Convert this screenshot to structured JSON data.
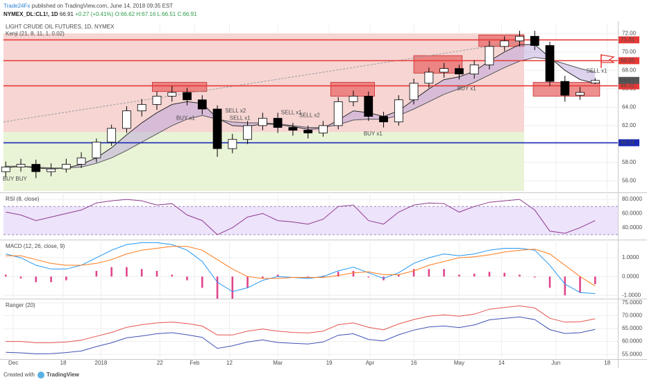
{
  "header": {
    "author": "Trade24Fx",
    "published": "published on TradingView.com, June 14, 2018 09:35 EST",
    "symbol": "NYMEX_DL:CL1!, 1D",
    "last": "66.91",
    "change": "+0.27 (+0.41%)",
    "open": "O:66.62",
    "high": "H:67.16",
    "low": "L:66.51",
    "close": "C:66.91"
  },
  "footer": {
    "created": "Created with",
    "brand": "TradingView"
  },
  "chart_data": [
    {
      "type": "candlestick",
      "title": "LIGHT CRUDE OIL FUTURES, 1D, NYMEX",
      "subtitle": "Kenji (21, 8, 11, 1, 0.02)",
      "xlim": [
        -0.15,
        40.5
      ],
      "xticks": [
        {
          "value": 0.5,
          "label": "Dec"
        },
        {
          "value": 3.8,
          "label": "18"
        },
        {
          "value": 6.3,
          "label": "2018"
        },
        {
          "value": 10.2,
          "label": "22"
        },
        {
          "value": 12.5,
          "label": "Feb"
        },
        {
          "value": 14.8,
          "label": "12"
        },
        {
          "value": 18,
          "label": "Mar"
        },
        {
          "value": 21.4,
          "label": "19"
        },
        {
          "value": 24.1,
          "label": "Apr"
        },
        {
          "value": 27,
          "label": "16"
        },
        {
          "value": 30,
          "label": "May"
        },
        {
          "value": 32.8,
          "label": "14"
        },
        {
          "value": 36.4,
          "label": "Jun"
        },
        {
          "value": 39.8,
          "label": "18"
        }
      ],
      "ylim": [
        54.9,
        73
      ],
      "yticks": [
        {
          "value": 56,
          "label": "56.00"
        },
        {
          "value": 58,
          "label": "58.00"
        },
        {
          "value": 60,
          "label": "60.00"
        },
        {
          "value": 62,
          "label": "62.00"
        },
        {
          "value": 64,
          "label": "64.00"
        },
        {
          "value": 66,
          "label": "66.00"
        },
        {
          "value": 68,
          "label": "68.00"
        },
        {
          "value": 70,
          "label": "70.00"
        },
        {
          "value": 72,
          "label": "72.00"
        }
      ],
      "candles": {
        "open": [
          57.0,
          57.5,
          57.8,
          57.0,
          57.3,
          57.8,
          58.5,
          60.2,
          61.7,
          63.6,
          64.3,
          65.2,
          65.6,
          64.8,
          63.8,
          59.5,
          60.5,
          62.0,
          62.8,
          61.8,
          61.5,
          61.2,
          62.0,
          64.6,
          65.2,
          63.0,
          62.4,
          64.8,
          66.6,
          67.8,
          68.2,
          67.6,
          68.6,
          70.6,
          71.2,
          71.7,
          70.7,
          66.8,
          65.3,
          66.62
        ],
        "high": [
          58.1,
          58.4,
          58.3,
          57.9,
          58.4,
          59.1,
          60.6,
          62.1,
          64.1,
          64.9,
          65.7,
          66.3,
          66.1,
          65.3,
          64.2,
          61.1,
          62.5,
          63.4,
          63.4,
          62.3,
          62.0,
          62.5,
          65.1,
          65.8,
          65.7,
          63.5,
          65.3,
          67.1,
          68.3,
          68.8,
          68.6,
          69.1,
          71.2,
          71.7,
          72.3,
          72.3,
          71.1,
          67.4,
          66.2,
          67.16
        ],
        "low": [
          56.4,
          57.0,
          56.3,
          56.5,
          56.9,
          57.4,
          58.0,
          59.8,
          61.2,
          63.0,
          63.7,
          64.6,
          64.2,
          63.2,
          58.6,
          59.0,
          60.0,
          61.5,
          61.2,
          60.9,
          60.6,
          60.8,
          61.6,
          64.1,
          62.5,
          61.8,
          62.0,
          64.3,
          66.1,
          67.2,
          67.0,
          67.1,
          68.1,
          70.1,
          70.6,
          70.2,
          66.3,
          64.6,
          64.8,
          66.51
        ],
        "close": [
          57.5,
          57.8,
          57.0,
          57.3,
          57.8,
          58.5,
          60.2,
          61.7,
          63.6,
          64.3,
          65.2,
          65.6,
          64.8,
          63.8,
          59.5,
          60.5,
          62.0,
          62.8,
          61.8,
          61.5,
          61.2,
          62.0,
          64.6,
          65.2,
          63.0,
          62.4,
          64.8,
          66.6,
          67.8,
          68.2,
          67.6,
          68.6,
          70.6,
          71.2,
          71.7,
          70.7,
          66.8,
          65.3,
          65.6,
          66.91
        ],
        "up_color": "#ffffff",
        "down_color": "#000000"
      },
      "kenji": [
        {
          "color": "#2b2b2b",
          "values": [
            57.4,
            57.6,
            57.4,
            57.3,
            57.4,
            57.8,
            58.5,
            59.6,
            61.0,
            62.3,
            63.4,
            64.3,
            64.6,
            64.4,
            62.8,
            62.0,
            61.9,
            62.2,
            62.1,
            61.9,
            61.6,
            61.7,
            62.6,
            63.6,
            63.4,
            63.0,
            63.6,
            64.8,
            66.0,
            67.0,
            67.3,
            67.9,
            69.0,
            70.0,
            70.8,
            70.8,
            69.4,
            68.0,
            67.0,
            66.6
          ]
        },
        {
          "color": "#555555",
          "values": [
            57.6,
            57.6,
            57.5,
            57.4,
            57.4,
            57.5,
            57.9,
            58.5,
            59.3,
            60.2,
            61.1,
            62.0,
            62.7,
            63.1,
            62.7,
            62.4,
            62.3,
            62.3,
            62.2,
            62.0,
            61.8,
            61.8,
            62.1,
            62.6,
            62.7,
            62.7,
            63.1,
            63.8,
            64.6,
            65.4,
            66.0,
            66.7,
            67.5,
            68.3,
            69.0,
            69.4,
            69.2,
            68.7,
            68.2,
            67.8
          ]
        }
      ],
      "kenji_fill": "#b39ddb",
      "shading": [
        {
          "x": [
            -0.15,
            34.3
          ],
          "y": [
            61.3,
            72
          ],
          "color": "#f6d5d3"
        },
        {
          "x": [
            -0.15,
            34.3
          ],
          "y": [
            54.9,
            61.3
          ],
          "color": "#e9f3d6"
        }
      ],
      "zones": [
        {
          "x": [
            9.7,
            13.3
          ],
          "y": [
            65.7,
            66.7
          ],
          "color": "#e86a6a"
        },
        {
          "x": [
            21.5,
            24.4
          ],
          "y": [
            65.2,
            66.7
          ],
          "color": "#e86a6a"
        },
        {
          "x": [
            27,
            30.2
          ],
          "y": [
            67.7,
            69.6
          ],
          "color": "#e86a6a"
        },
        {
          "x": [
            31.3,
            34.3
          ],
          "y": [
            70.6,
            71.85
          ],
          "color": "#e86a6a"
        },
        {
          "x": [
            34.9,
            39.3
          ],
          "y": [
            65.2,
            66.7
          ],
          "color": "#e86a6a"
        }
      ],
      "trendline": {
        "x": [
          -0.15,
          34.3
        ],
        "y": [
          62.4,
          71.2
        ],
        "color": "#9e9e9e"
      },
      "levels": [
        {
          "value": 71.31,
          "color": "#e53935"
        },
        {
          "value": 69.05,
          "color": "#e53935"
        },
        {
          "value": 66.32,
          "color": "#e53935"
        },
        {
          "value": 60.14,
          "color": "#1a2ab5"
        }
      ],
      "last_price": 66.91,
      "last_color": "#555555",
      "annotations": [
        {
          "text": "BUY BUY",
          "x": 0.6,
          "y": 56.2,
          "color": "#6a5acd"
        },
        {
          "text": "BUY x1",
          "x": 11.9,
          "y": 62.8,
          "color": "#6a5acd"
        },
        {
          "text": "SELL x2",
          "x": 15.2,
          "y": 63.6,
          "color": "#e53935"
        },
        {
          "text": "SELL x1",
          "x": 15.5,
          "y": 62.8,
          "color": "#e53935"
        },
        {
          "text": "SELL x1",
          "x": 18.9,
          "y": 63.4,
          "color": "#e53935"
        },
        {
          "text": "SELL x2",
          "x": 20.1,
          "y": 63.1,
          "color": "#e53935"
        },
        {
          "text": "BUY x1",
          "x": 24.3,
          "y": 61.1,
          "color": "#6a5acd"
        },
        {
          "text": "BUY x1",
          "x": 30.5,
          "y": 66.0,
          "color": "#6a5acd"
        },
        {
          "text": "SELL x1",
          "x": 39.1,
          "y": 67.9,
          "color": "#e53935"
        }
      ]
    },
    {
      "type": "line",
      "title": "RSI (8, close)",
      "ylim": [
        25,
        87
      ],
      "yticks": [
        {
          "value": 40,
          "label": "40.0000"
        },
        {
          "value": 60,
          "label": "60.0000"
        },
        {
          "value": 80,
          "label": "80.0000"
        }
      ],
      "band": [
        30,
        70
      ],
      "band_color": "#ede3fb",
      "series": [
        {
          "style": "line",
          "color": "#8e3a8e",
          "values": [
            62,
            58,
            50,
            55,
            60,
            65,
            75,
            78,
            80,
            78,
            72,
            74,
            58,
            50,
            30,
            40,
            55,
            60,
            50,
            48,
            45,
            52,
            70,
            72,
            50,
            45,
            62,
            72,
            75,
            74,
            62,
            70,
            76,
            78,
            80,
            65,
            35,
            32,
            40,
            50
          ]
        }
      ]
    },
    {
      "type": "line",
      "title": "MACD (12, 26, close, 9)",
      "ylim": [
        -1.1,
        1.85
      ],
      "yticks": [
        {
          "value": -1,
          "label": "-1.0000"
        },
        {
          "value": 0,
          "label": "0.0000"
        },
        {
          "value": 1,
          "label": "1.0000"
        }
      ],
      "series": [
        {
          "style": "histogram",
          "color": "#e0468a",
          "values": [
            0.1,
            -0.1,
            -0.3,
            -0.3,
            -0.2,
            0.0,
            0.3,
            0.5,
            0.5,
            0.4,
            0.3,
            0.1,
            -0.2,
            -0.6,
            -1.2,
            -1.2,
            -0.6,
            -0.1,
            0.1,
            0.0,
            -0.05,
            0.05,
            0.25,
            0.3,
            -0.05,
            -0.2,
            0.1,
            0.4,
            0.4,
            0.4,
            0.1,
            0.15,
            0.25,
            0.2,
            0.1,
            -0.05,
            -0.6,
            -1.0,
            -0.85,
            -0.4
          ]
        },
        {
          "style": "line",
          "color": "#2196f3",
          "values": [
            1.2,
            1.0,
            0.6,
            0.4,
            0.4,
            0.6,
            1.0,
            1.4,
            1.7,
            1.8,
            1.8,
            1.7,
            1.4,
            0.8,
            -0.3,
            -0.8,
            -0.6,
            -0.2,
            0.0,
            -0.05,
            -0.1,
            0.0,
            0.3,
            0.5,
            0.2,
            -0.1,
            0.2,
            0.7,
            1.0,
            1.2,
            1.1,
            1.2,
            1.4,
            1.5,
            1.5,
            1.4,
            0.6,
            -0.4,
            -0.85,
            -0.9
          ]
        },
        {
          "style": "line",
          "color": "#ff7a1a",
          "values": [
            1.1,
            1.1,
            0.9,
            0.7,
            0.6,
            0.6,
            0.7,
            0.9,
            1.2,
            1.4,
            1.5,
            1.6,
            1.6,
            1.4,
            0.9,
            0.4,
            0.0,
            -0.1,
            -0.1,
            -0.05,
            -0.05,
            -0.05,
            0.05,
            0.2,
            0.25,
            0.1,
            0.1,
            0.3,
            0.6,
            0.8,
            1.0,
            1.05,
            1.15,
            1.3,
            1.4,
            1.45,
            1.2,
            0.6,
            0.0,
            -0.5
          ]
        }
      ]
    },
    {
      "type": "line",
      "title": "Ranger (20)",
      "ylim": [
        53.7,
        75.8
      ],
      "yticks": [
        {
          "value": 55,
          "label": "55.0000"
        },
        {
          "value": 60,
          "label": "60.0000"
        },
        {
          "value": 65,
          "label": "65.0000"
        },
        {
          "value": 70,
          "label": "70.0000"
        },
        {
          "value": 75,
          "label": "75.0000"
        }
      ],
      "series": [
        {
          "style": "line",
          "color": "#e5534b",
          "values": [
            60,
            60,
            59.5,
            59.5,
            59.8,
            60.5,
            62,
            63.5,
            65.5,
            66.5,
            67.2,
            67.5,
            67,
            66,
            62.5,
            62.5,
            64,
            64.8,
            64,
            63.5,
            63.3,
            64,
            66.5,
            67.2,
            65.5,
            64.5,
            66.8,
            68.5,
            69.8,
            70.3,
            69.8,
            70.6,
            72.5,
            73.2,
            73.8,
            73,
            69,
            67.5,
            67.6,
            68.8
          ]
        },
        {
          "style": "line",
          "color": "#3f51b5",
          "values": [
            55.8,
            55.6,
            55.2,
            55.3,
            55.7,
            56.3,
            58,
            59.5,
            61.4,
            62.1,
            63,
            63.4,
            62.6,
            61.6,
            57.3,
            58.3,
            59.8,
            60.6,
            59.6,
            59.3,
            59,
            59.8,
            62.4,
            63,
            60.8,
            60.2,
            62.6,
            64.4,
            65.6,
            66,
            65.4,
            66.4,
            68.4,
            69,
            69.5,
            68.5,
            64.6,
            63.1,
            63.4,
            64.7
          ]
        }
      ]
    }
  ]
}
